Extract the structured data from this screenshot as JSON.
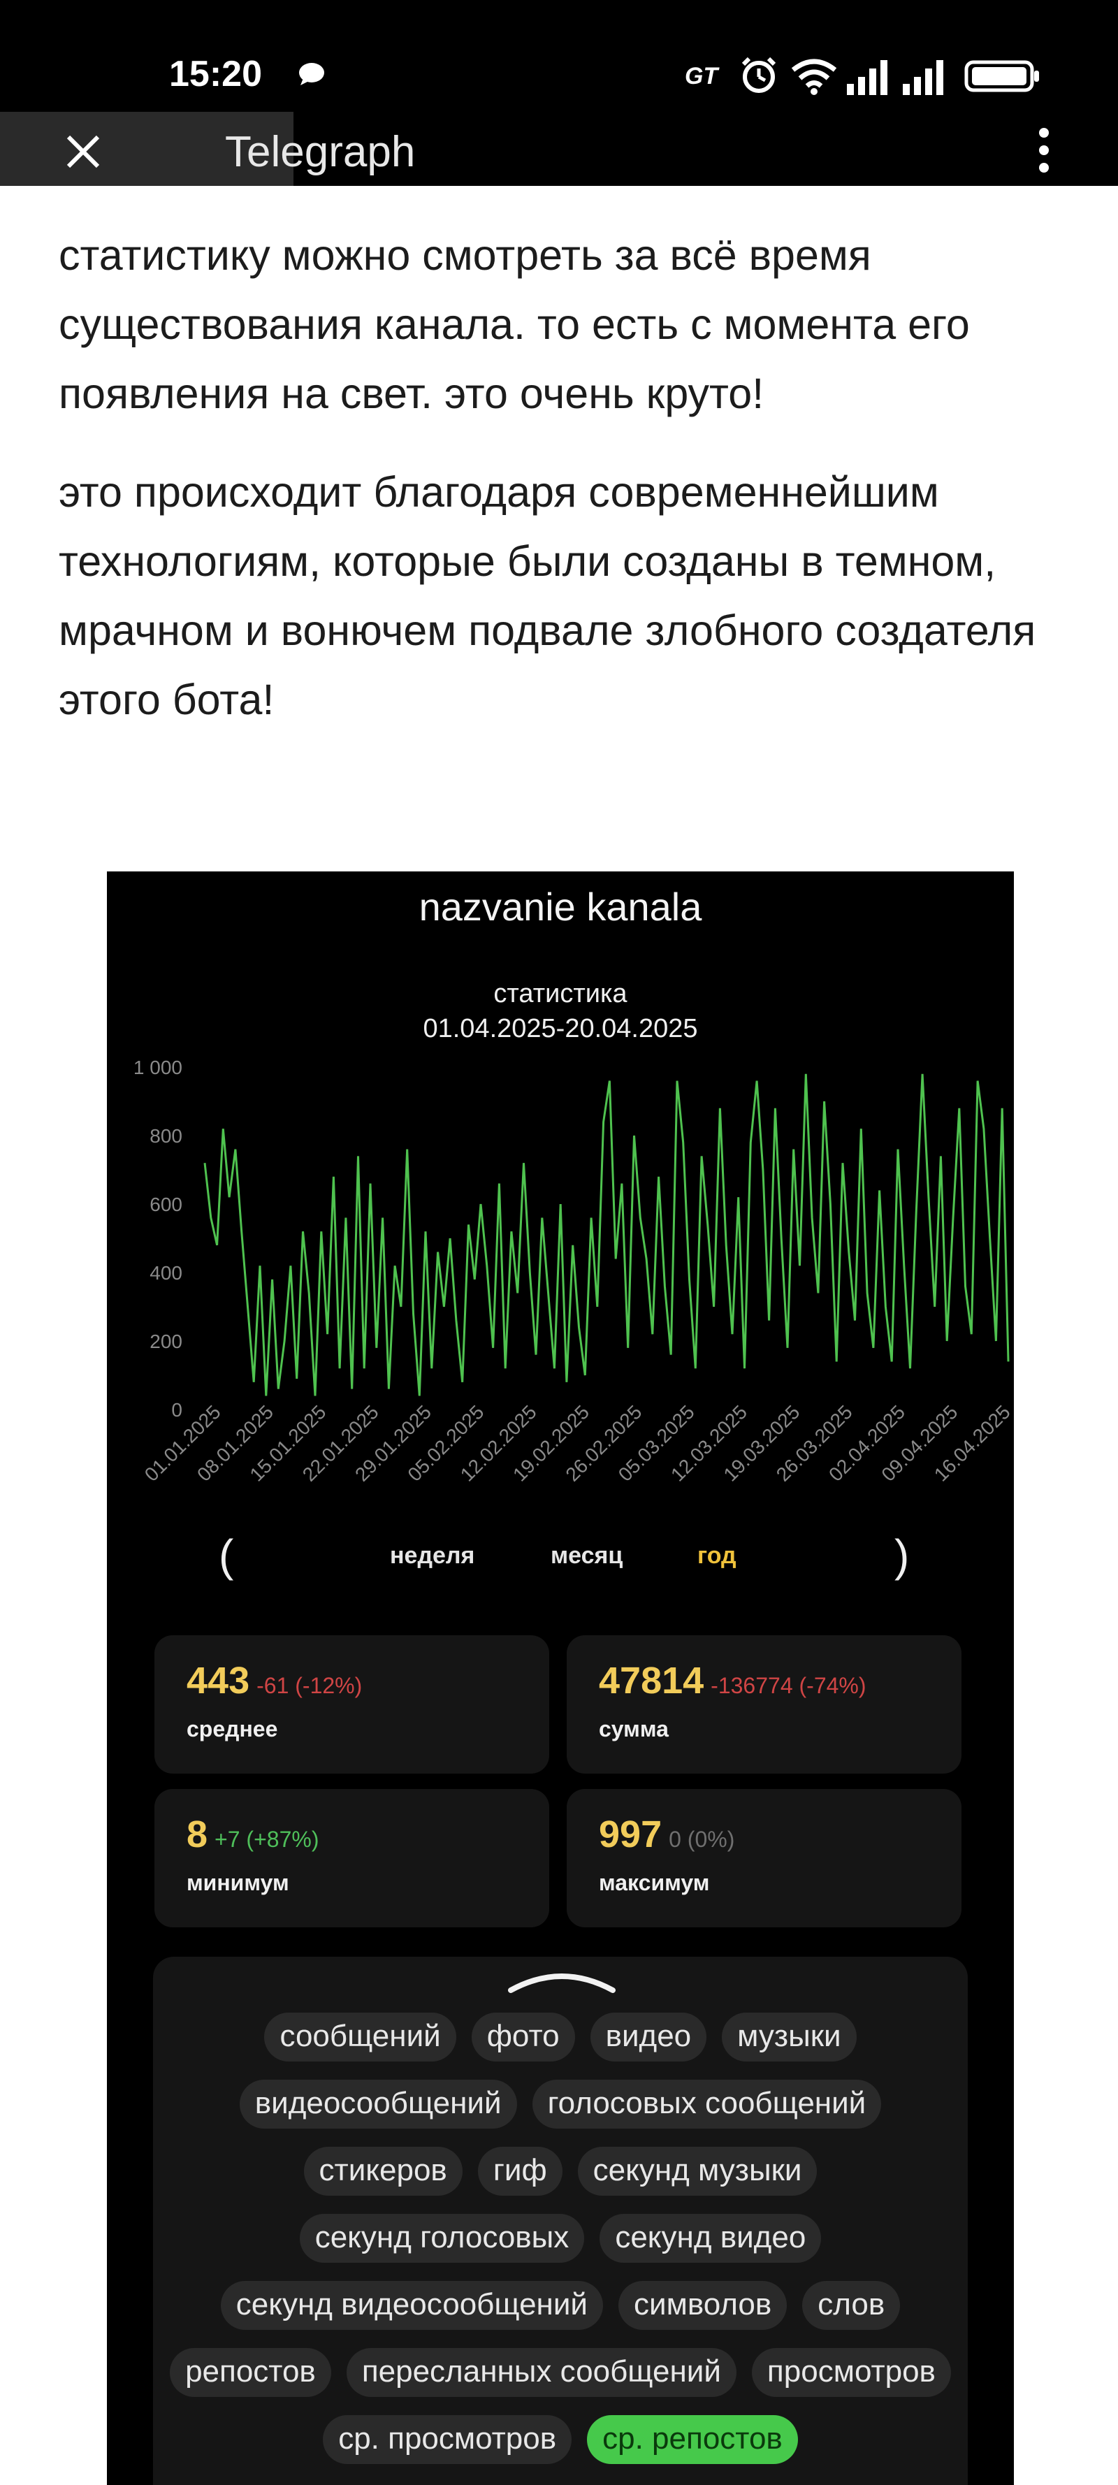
{
  "status_bar": {
    "time": "15:20",
    "carrier_badge": "GT",
    "icons": [
      "message-icon",
      "alarm-icon",
      "wifi-icon",
      "signal-icon",
      "signal-icon",
      "battery-icon"
    ]
  },
  "app_bar": {
    "title": "Telegraph",
    "close_icon": "close-icon",
    "menu_icon": "more-vert-icon"
  },
  "article": {
    "paragraphs": [
      "статистику можно смотреть за всё время существования канала. то есть с момента его появления на свет. это очень круто!",
      "это происходит благодаря современнейшим технологиям, которые были созданы в темном, мрачном и вонючем подвале злобного создателя этого бота!"
    ]
  },
  "embedded_screenshot": {
    "channel_title": "nazvanie kanala",
    "stats_title": "статистика",
    "date_range": "01.04.2025-20.04.2025",
    "periods": {
      "prev": "(",
      "week": "неделя",
      "month": "месяц",
      "year": "год",
      "next": ")",
      "active": "year"
    },
    "stats": {
      "avg": {
        "value": "443",
        "delta": "-61 (-12%)",
        "label": "среднее"
      },
      "sum": {
        "value": "47814",
        "delta": "-136774 (-74%)",
        "label": "сумма"
      },
      "min": {
        "value": "8",
        "delta": "+7 (+87%)",
        "label": "минимум"
      },
      "max": {
        "value": "997",
        "delta": "0 (0%)",
        "label": "максимум"
      }
    },
    "chips": [
      {
        "label": "сообщений",
        "active": false
      },
      {
        "label": "фото",
        "active": false
      },
      {
        "label": "видео",
        "active": false
      },
      {
        "label": "музыки",
        "active": false
      },
      {
        "label": "видеосообщений",
        "active": false
      },
      {
        "label": "голосовых сообщений",
        "active": false
      },
      {
        "label": "стикеров",
        "active": false
      },
      {
        "label": "гиф",
        "active": false
      },
      {
        "label": "секунд музыки",
        "active": false
      },
      {
        "label": "секунд голосовых",
        "active": false
      },
      {
        "label": "секунд видео",
        "active": false
      },
      {
        "label": "секунд видеосообщений",
        "active": false
      },
      {
        "label": "символов",
        "active": false
      },
      {
        "label": "слов",
        "active": false
      },
      {
        "label": "репостов",
        "active": false
      },
      {
        "label": "пересланных сообщений",
        "active": false
      },
      {
        "label": "просмотров",
        "active": false
      },
      {
        "label": "ср. просмотров",
        "active": false
      },
      {
        "label": "ср. репостов",
        "active": true
      }
    ],
    "colors": {
      "line": "#4fc24f",
      "accent": "#f0c23b",
      "chip_active": "#46c94b"
    }
  },
  "chart_data": {
    "type": "line",
    "title": "",
    "xlabel": "",
    "ylabel": "",
    "ylim": [
      0,
      1000
    ],
    "y_ticks": [
      "0",
      "200",
      "400",
      "600",
      "800",
      "1 000"
    ],
    "x_tick_labels": [
      "01.01.2025",
      "08.01.2025",
      "15.01.2025",
      "22.01.2025",
      "29.01.2025",
      "05.02.2025",
      "12.02.2025",
      "19.02.2025",
      "26.02.2025",
      "05.03.2025",
      "12.03.2025",
      "19.03.2025",
      "26.03.2025",
      "02.04.2025",
      "09.04.2025",
      "16.04.2025"
    ],
    "grid": false,
    "series": [
      {
        "values": [
          720,
          560,
          480,
          820,
          620,
          760,
          520,
          300,
          80,
          420,
          40,
          380,
          60,
          200,
          420,
          90,
          520,
          340,
          40,
          520,
          220,
          680,
          120,
          560,
          60,
          740,
          120,
          660,
          180,
          560,
          60,
          420,
          300,
          760,
          280,
          40,
          520,
          120,
          460,
          300,
          500,
          260,
          80,
          540,
          380,
          600,
          420,
          180,
          660,
          120,
          520,
          340,
          720,
          400,
          160,
          560,
          340,
          120,
          600,
          80,
          480,
          240,
          100,
          560,
          300,
          840,
          960,
          440,
          660,
          180,
          800,
          560,
          440,
          220,
          680,
          360,
          160,
          960,
          780,
          380,
          120,
          740,
          540,
          300,
          880,
          480,
          220,
          620,
          120,
          780,
          960,
          700,
          260,
          880,
          500,
          180,
          760,
          420,
          980,
          560,
          340,
          900,
          600,
          140,
          720,
          460,
          260,
          820,
          340,
          180,
          640,
          300,
          140,
          760,
          420,
          120,
          580,
          980,
          620,
          300,
          740,
          200,
          560,
          880,
          360,
          220,
          960,
          820,
          500,
          200,
          880,
          140
        ]
      }
    ]
  }
}
